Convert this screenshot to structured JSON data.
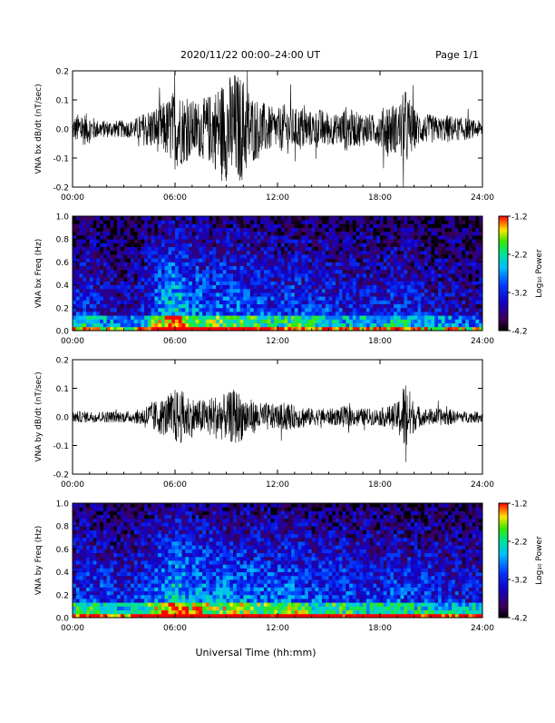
{
  "header": {
    "title": "2020/11/22  00:00–24:00 UT",
    "page_label": "Page 1/1"
  },
  "xlabel": "Universal Time (hh:mm)",
  "chart_data": [
    {
      "type": "line",
      "ylabel": "VNA bx dB/dt (nT/sec)",
      "xlim": [
        0,
        24
      ],
      "ylim": [
        -0.2,
        0.2
      ],
      "x_ticks": [
        "00:00",
        "06:00",
        "12:00",
        "18:00",
        "24:00"
      ],
      "y_ticks": [
        "-0.2",
        "-0.1",
        "0.0",
        "0.1",
        "0.2"
      ],
      "envelope": {
        "hours": [
          0,
          0.5,
          1,
          1.5,
          2,
          2.5,
          3,
          3.5,
          4,
          4.5,
          5,
          5.5,
          6,
          6.5,
          7,
          7.5,
          8,
          8.5,
          9,
          9.5,
          10,
          10.5,
          11,
          11.5,
          12,
          12.5,
          13,
          13.5,
          14,
          14.5,
          15,
          15.5,
          16,
          16.5,
          17,
          17.5,
          18,
          18.5,
          19,
          19.5,
          20,
          20.5,
          21,
          21.5,
          22,
          22.5,
          23,
          23.5,
          24
        ],
        "amplitude": [
          0.04,
          0.06,
          0.05,
          0.03,
          0.03,
          0.03,
          0.03,
          0.03,
          0.05,
          0.07,
          0.08,
          0.1,
          0.14,
          0.12,
          0.1,
          0.1,
          0.12,
          0.15,
          0.18,
          0.2,
          0.18,
          0.12,
          0.1,
          0.08,
          0.07,
          0.09,
          0.07,
          0.08,
          0.06,
          0.07,
          0.06,
          0.05,
          0.08,
          0.06,
          0.06,
          0.05,
          0.06,
          0.1,
          0.08,
          0.14,
          0.07,
          0.05,
          0.05,
          0.04,
          0.05,
          0.04,
          0.04,
          0.03,
          0.03
        ]
      }
    },
    {
      "type": "heatmap",
      "ylabel": "VNA bx Freq (Hz)",
      "xlim": [
        0,
        24
      ],
      "ylim": [
        0,
        1
      ],
      "x_ticks": [
        "00:00",
        "06:00",
        "12:00",
        "18:00",
        "24:00"
      ],
      "y_ticks": [
        "0.0",
        "0.2",
        "0.4",
        "0.6",
        "0.8",
        "1.0"
      ],
      "colorbar": {
        "label": "Log₁₀ Power",
        "range": [
          -4.2,
          -1.2
        ],
        "ticks": [
          "-1.2",
          "-2.2",
          "-3.2",
          "-4.2"
        ]
      },
      "activity": {
        "hours": [
          0,
          1,
          2,
          3,
          4,
          5,
          6,
          7,
          8,
          9,
          10,
          11,
          12,
          13,
          14,
          15,
          16,
          17,
          18,
          19,
          20,
          21,
          22,
          23,
          24
        ],
        "level": [
          0.35,
          0.4,
          0.3,
          0.25,
          0.3,
          0.55,
          0.7,
          0.55,
          0.5,
          0.5,
          0.5,
          0.45,
          0.4,
          0.45,
          0.4,
          0.4,
          0.35,
          0.35,
          0.35,
          0.4,
          0.35,
          0.3,
          0.3,
          0.25,
          0.25
        ]
      }
    },
    {
      "type": "line",
      "ylabel": "VNA by dB/dt (nT/sec)",
      "xlim": [
        0,
        24
      ],
      "ylim": [
        -0.2,
        0.2
      ],
      "x_ticks": [
        "00:00",
        "06:00",
        "12:00",
        "18:00",
        "24:00"
      ],
      "y_ticks": [
        "-0.2",
        "-0.1",
        "0.0",
        "0.1",
        "0.2"
      ],
      "envelope": {
        "hours": [
          0,
          0.5,
          1,
          1.5,
          2,
          2.5,
          3,
          3.5,
          4,
          4.5,
          5,
          5.5,
          6,
          6.5,
          7,
          7.5,
          8,
          8.5,
          9,
          9.5,
          10,
          10.5,
          11,
          11.5,
          12,
          12.5,
          13,
          13.5,
          14,
          14.5,
          15,
          15.5,
          16,
          16.5,
          17,
          17.5,
          18,
          18.5,
          19,
          19.5,
          20,
          20.5,
          21,
          21.5,
          22,
          22.5,
          23,
          23.5,
          24
        ],
        "amplitude": [
          0.02,
          0.02,
          0.02,
          0.02,
          0.02,
          0.02,
          0.02,
          0.02,
          0.03,
          0.05,
          0.06,
          0.07,
          0.1,
          0.09,
          0.07,
          0.06,
          0.07,
          0.08,
          0.08,
          0.1,
          0.08,
          0.06,
          0.05,
          0.05,
          0.04,
          0.05,
          0.04,
          0.04,
          0.03,
          0.03,
          0.03,
          0.03,
          0.04,
          0.03,
          0.03,
          0.03,
          0.03,
          0.04,
          0.05,
          0.14,
          0.05,
          0.03,
          0.03,
          0.03,
          0.03,
          0.02,
          0.02,
          0.02,
          0.02
        ]
      }
    },
    {
      "type": "heatmap",
      "ylabel": "VNA by Freq (Hz)",
      "xlim": [
        0,
        24
      ],
      "ylim": [
        0,
        1
      ],
      "x_ticks": [
        "00:00",
        "06:00",
        "12:00",
        "18:00",
        "24:00"
      ],
      "y_ticks": [
        "0.0",
        "0.2",
        "0.4",
        "0.6",
        "0.8",
        "1.0"
      ],
      "colorbar": {
        "label": "Log₁₀ Power",
        "range": [
          -4.2,
          -1.2
        ],
        "ticks": [
          "-1.2",
          "-2.2",
          "-3.2",
          "-4.2"
        ]
      },
      "activity": {
        "hours": [
          0,
          1,
          2,
          3,
          4,
          5,
          6,
          7,
          8,
          9,
          10,
          11,
          12,
          13,
          14,
          15,
          16,
          17,
          18,
          19,
          20,
          21,
          22,
          23,
          24
        ],
        "level": [
          0.4,
          0.45,
          0.4,
          0.35,
          0.4,
          0.55,
          0.7,
          0.6,
          0.55,
          0.55,
          0.55,
          0.5,
          0.5,
          0.55,
          0.45,
          0.45,
          0.45,
          0.4,
          0.4,
          0.45,
          0.4,
          0.4,
          0.35,
          0.35,
          0.35
        ]
      }
    }
  ]
}
